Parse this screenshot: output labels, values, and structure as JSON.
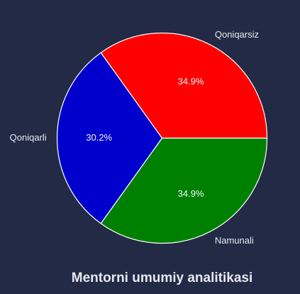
{
  "chart_data": {
    "type": "pie",
    "title": "Mentorni umumiy analitikasi",
    "slices": [
      {
        "label": "Qoniqarsiz",
        "value": 34.9,
        "pct_text": "34.9%",
        "color": "#ff0000"
      },
      {
        "label": "Qoniqarli",
        "value": 30.2,
        "pct_text": "30.2%",
        "color": "#0000cd"
      },
      {
        "label": "Namunali",
        "value": 34.9,
        "pct_text": "34.9%",
        "color": "#008000"
      }
    ],
    "start_angle_deg": 0,
    "direction": "counterclockwise",
    "edge_color": "#ffffff",
    "background": "#222a45"
  }
}
